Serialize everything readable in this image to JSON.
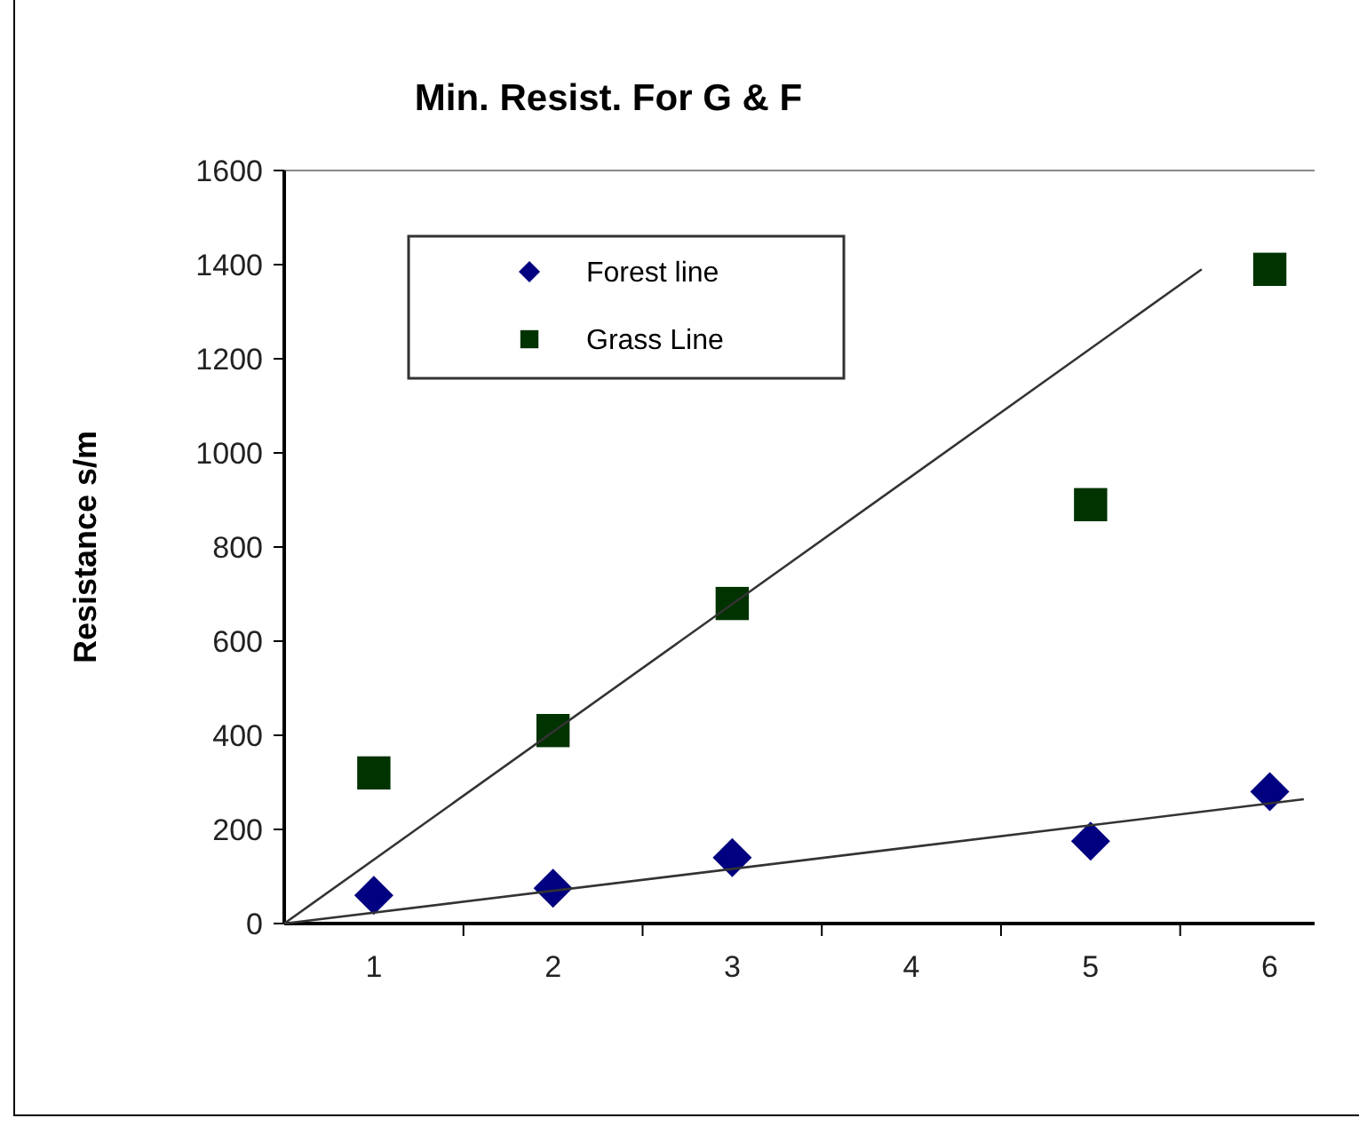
{
  "chart_data": {
    "type": "scatter",
    "title": "Min. Resist. For G & F",
    "ylabel": "Resistance s/m",
    "x": [
      1,
      2,
      3,
      5,
      6
    ],
    "xlim": [
      0.5,
      6.25
    ],
    "xticks": [
      1,
      2,
      3,
      4,
      5,
      6,
      {
        "value": 1.5,
        "label": null
      },
      {
        "value": 2.5,
        "label": null
      },
      {
        "value": 3.5,
        "label": null
      },
      {
        "value": 4.5,
        "label": null
      },
      {
        "value": 5.5,
        "label": null
      }
    ],
    "ylim": [
      0,
      1600
    ],
    "yticks": [
      0,
      200,
      400,
      600,
      800,
      1000,
      1200,
      1400,
      1600
    ],
    "grid": false,
    "legend": "top left",
    "series": [
      {
        "name": "Forest line",
        "color": "#000080",
        "marker": "diamond",
        "values": [
          60,
          75,
          140,
          175,
          280
        ]
      },
      {
        "name": "Grass Line",
        "color": "#003300",
        "marker": "square",
        "values": [
          320,
          410,
          680,
          890,
          1390
        ]
      },
      {
        "type": "line",
        "color": "#333333",
        "x": [
          0.5,
          6.19
        ],
        "values": [
          0,
          264
        ]
      },
      {
        "type": "line",
        "color": "#333333",
        "x": [
          0.5,
          5.62
        ],
        "values": [
          0,
          1390
        ]
      }
    ]
  }
}
